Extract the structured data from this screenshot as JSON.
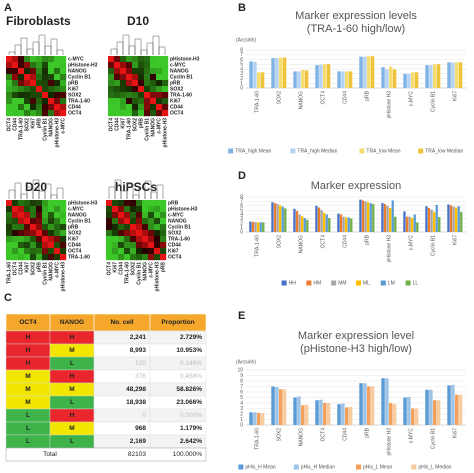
{
  "panels": [
    "A",
    "B",
    "C",
    "D",
    "E"
  ],
  "heatmaps": [
    {
      "title": "Fibroblasts",
      "labels": [
        "c-MYC",
        "pHistone-H3",
        "NANOG",
        "Cyclin B1",
        "pRB",
        "Ki67",
        "SOX2",
        "TRA-1-60",
        "CD44",
        "OCT4"
      ]
    },
    {
      "title": "D10",
      "labels": [
        "pHistone-H3",
        "c-MYC",
        "NANOG",
        "Cyclin B1",
        "pRB",
        "SOX2",
        "TRA-1-60",
        "Ki67",
        "CD44",
        "OCT4"
      ]
    },
    {
      "title": "D20",
      "labels": [
        "pHistone-H3",
        "c-MYC",
        "NANOG",
        "Cyclin B1",
        "pRB",
        "SOX2",
        "Ki67",
        "CD44",
        "OCT4",
        "TRA-1-60"
      ]
    },
    {
      "title": "hiPSCs",
      "labels": [
        "pRB",
        "pHistone-H3",
        "c-MYC",
        "NANOG",
        "Cyclin B1",
        "SOX2",
        "TRA-1-60",
        "CD44",
        "Ki67",
        "OCT4"
      ]
    }
  ],
  "table": {
    "header": [
      "OCT4",
      "NANOG",
      "No. cell",
      "Proportion"
    ],
    "rows": [
      {
        "cells": [
          "H",
          "H",
          "2,241",
          "2.729%"
        ],
        "colors": [
          "#e8262b",
          "#e8262b"
        ],
        "muted": false
      },
      {
        "cells": [
          "H",
          "M",
          "8,993",
          "10.953%"
        ],
        "colors": [
          "#e8262b",
          "#f2e600"
        ],
        "muted": false
      },
      {
        "cells": [
          "H",
          "L",
          "120",
          "0.146%"
        ],
        "colors": [
          "#e8262b",
          "#3db34a"
        ],
        "muted": true
      },
      {
        "cells": [
          "M",
          "H",
          "376",
          "0.458%"
        ],
        "colors": [
          "#f2e600",
          "#e8262b"
        ],
        "muted": true
      },
      {
        "cells": [
          "M",
          "M",
          "48,298",
          "58.826%"
        ],
        "colors": [
          "#f2e600",
          "#f2e600"
        ],
        "muted": false
      },
      {
        "cells": [
          "M",
          "L",
          "18,938",
          "23.066%"
        ],
        "colors": [
          "#f2e600",
          "#3db34a"
        ],
        "muted": false
      },
      {
        "cells": [
          "L",
          "H",
          "0",
          "0.000%"
        ],
        "colors": [
          "#3db34a",
          "#e8262b"
        ],
        "muted": true
      },
      {
        "cells": [
          "L",
          "M",
          "968",
          "1.179%"
        ],
        "colors": [
          "#3db34a",
          "#f2e600"
        ],
        "muted": false
      },
      {
        "cells": [
          "L",
          "L",
          "2,169",
          "2.642%"
        ],
        "colors": [
          "#3db34a",
          "#3db34a"
        ],
        "muted": false
      }
    ],
    "total": [
      "Total",
      "82103",
      "100.000%"
    ]
  },
  "chart_data": [
    {
      "type": "bar",
      "title": "Marker expression levels",
      "subtitle": "(TRA-1-60 high/low)",
      "ylabel": "(Arcsinh)",
      "categories": [
        "TRA-1-60",
        "SOX2",
        "NANOG",
        "OCT4",
        "CD44",
        "pRB",
        "pHistone H3",
        "c-MYC",
        "Cyclin B1",
        "Ki67"
      ],
      "series": [
        {
          "name": "TRA_high Mean",
          "color": "#7fb2e5",
          "values": [
            5.6,
            6.3,
            3.5,
            4.8,
            3.5,
            6.6,
            4.4,
            3.0,
            4.8,
            5.4
          ]
        },
        {
          "name": "TRA_high Median",
          "color": "#b4d3f2",
          "values": [
            5.5,
            6.3,
            3.5,
            4.9,
            3.5,
            6.6,
            3.9,
            3.0,
            4.8,
            5.4
          ]
        },
        {
          "name": "TRA_low Mean",
          "color": "#f7dc70",
          "values": [
            3.3,
            6.4,
            3.8,
            5.0,
            3.5,
            6.7,
            4.5,
            3.3,
            5.0,
            5.4
          ]
        },
        {
          "name": "TRA_low Median",
          "color": "#efc33a",
          "values": [
            3.3,
            6.4,
            3.7,
            5.0,
            3.5,
            6.7,
            3.9,
            3.3,
            5.0,
            5.4
          ]
        }
      ],
      "ylim": [
        0,
        8
      ],
      "yticks": [
        0,
        1,
        2,
        3,
        4,
        5,
        6,
        7,
        8
      ],
      "grid": true
    },
    {
      "type": "bar",
      "title": "Marker expression",
      "categories": [
        "TRA-1-60",
        "SOX2",
        "NANOG",
        "OCT4",
        "CD44",
        "pRB",
        "pHistone H3",
        "c-MYC",
        "Cyclin B1",
        "Ki67"
      ],
      "series": [
        {
          "name": "HH",
          "color": "#4472c4",
          "values": [
            2.4,
            6.8,
            5.3,
            6.0,
            4.2,
            7.4,
            6.6,
            4.7,
            5.9,
            6.3
          ]
        },
        {
          "name": "HM",
          "color": "#ed7d31",
          "values": [
            2.3,
            6.6,
            4.8,
            5.6,
            4.0,
            7.2,
            6.4,
            3.5,
            5.5,
            6.1
          ]
        },
        {
          "name": "MM",
          "color": "#a5a5a5",
          "values": [
            2.3,
            6.4,
            4.0,
            5.0,
            3.5,
            7.0,
            6.0,
            3.5,
            5.1,
            5.8
          ]
        },
        {
          "name": "ML",
          "color": "#ffc000",
          "values": [
            2.2,
            6.1,
            3.6,
            4.4,
            3.3,
            6.8,
            5.5,
            3.2,
            4.6,
            5.6
          ]
        },
        {
          "name": "LM",
          "color": "#5b9bd5",
          "values": [
            2.2,
            5.8,
            3.2,
            4.0,
            3.3,
            6.6,
            7.2,
            4.0,
            6.2,
            5.9
          ]
        },
        {
          "name": "LL",
          "color": "#70ad47",
          "values": [
            2.2,
            5.4,
            2.8,
            3.2,
            3.1,
            6.4,
            3.5,
            2.2,
            3.4,
            4.6
          ]
        }
      ],
      "ylim": [
        0,
        8
      ],
      "yticks": [
        0,
        1,
        2,
        3,
        4,
        5,
        6,
        7,
        8
      ],
      "grid": true
    },
    {
      "type": "bar",
      "title": "Marker expression level",
      "subtitle": "(pHistone-H3 high/low)",
      "ylabel": "(Arcsinh)",
      "categories": [
        "TRA-1-60",
        "SOX2",
        "NANOG",
        "OCT4",
        "CD44",
        "pRB",
        "pHistone H3",
        "c-MYC",
        "Cyclin B1",
        "Ki67"
      ],
      "series": [
        {
          "name": "pHis_H Mean",
          "color": "#5b9bd5",
          "values": [
            2.3,
            7.0,
            5.0,
            4.5,
            3.8,
            7.6,
            8.5,
            5.0,
            6.4,
            7.2
          ]
        },
        {
          "name": "pHis_H Median",
          "color": "#9dc3e6",
          "values": [
            2.3,
            6.9,
            5.2,
            4.6,
            3.9,
            7.6,
            8.5,
            5.1,
            6.4,
            7.3
          ]
        },
        {
          "name": "pHis_L Mean",
          "color": "#f4a15d",
          "values": [
            2.2,
            6.5,
            3.6,
            4.0,
            3.2,
            7.0,
            4.0,
            3.0,
            4.5,
            5.5
          ]
        },
        {
          "name": "pHis_L Median",
          "color": "#f8cba0",
          "values": [
            2.2,
            6.5,
            3.7,
            4.0,
            3.3,
            7.0,
            3.8,
            3.0,
            4.5,
            5.5
          ]
        }
      ],
      "ylim": [
        0,
        10
      ],
      "yticks": [
        0,
        1,
        2,
        3,
        4,
        5,
        6,
        7,
        8,
        9,
        10
      ],
      "grid": true
    }
  ]
}
